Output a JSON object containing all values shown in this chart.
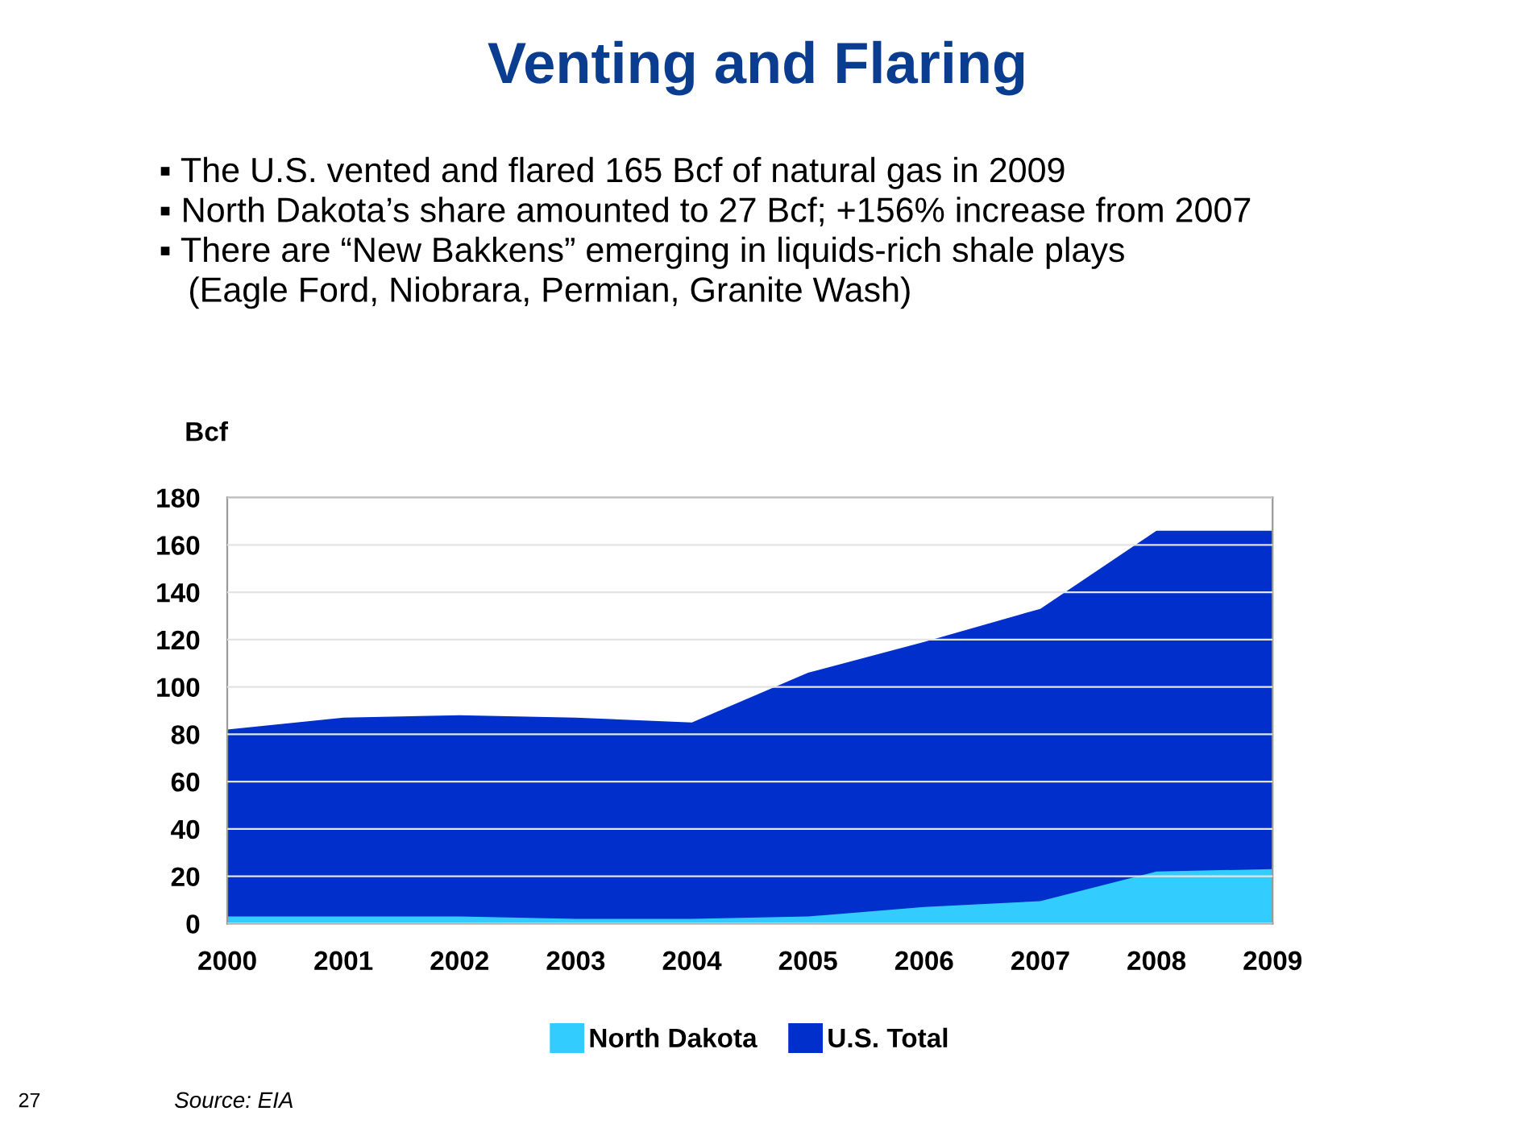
{
  "chart_data": {
    "type": "area",
    "title": "Venting and Flaring",
    "subtitle": "▪ The U.S. vented and flared 165 Bcf of natural gas in 2009\n▪ North Dakota’s share amounted to 27 Bcf; +156% increase from 2007\n▪ There are “New Bakkens” emerging in liquids-rich shale plays\n   (Eagle Ford, Niobrara, Permian, Granite Wash)",
    "ylabel": "Bcf",
    "x": [
      2000,
      2001,
      2002,
      2003,
      2004,
      2005,
      2006,
      2007,
      2008,
      2009
    ],
    "xlim": [
      2000,
      2009
    ],
    "xticks": [
      2000,
      2001,
      2002,
      2003,
      2004,
      2005,
      2006,
      2007,
      2008,
      2009
    ],
    "ylim": [
      0,
      180
    ],
    "yticks": [
      0,
      20,
      40,
      60,
      80,
      100,
      120,
      140,
      160,
      180
    ],
    "series": [
      {
        "name": "U.S. Total",
        "color": "#002fcb",
        "values": [
          82,
          87,
          88,
          87,
          85,
          106,
          119,
          133,
          166,
          166
        ]
      },
      {
        "name": "North Dakota",
        "color": "#33ccff",
        "values": [
          3,
          3,
          3,
          2,
          2,
          3,
          7,
          9.5,
          22,
          23
        ]
      }
    ],
    "grid": "y",
    "legend": "bottom",
    "annotations": [
      "Source: EIA",
      "27"
    ]
  }
}
